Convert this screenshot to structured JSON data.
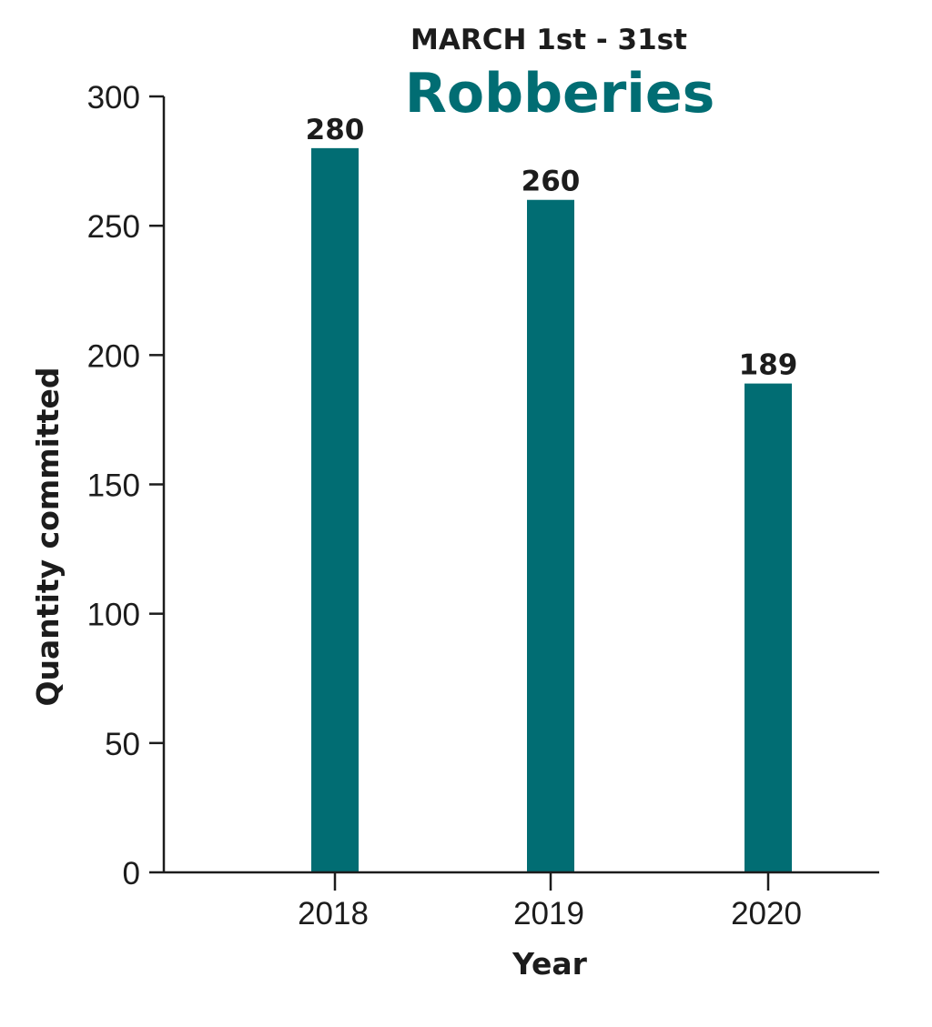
{
  "chart_data": {
    "type": "bar",
    "subtitle": "MARCH 1st - 31st",
    "title": "Robberies",
    "xlabel": "Year",
    "ylabel": "Quantity committed",
    "categories": [
      "2018",
      "2019",
      "2020"
    ],
    "values": [
      280,
      260,
      189
    ],
    "data_labels": [
      "280",
      "260",
      "189"
    ],
    "ylim": [
      0,
      300
    ],
    "yticks": [
      0,
      50,
      100,
      150,
      200,
      250,
      300
    ],
    "ytick_labels": [
      "0",
      "50",
      "100",
      "150",
      "200",
      "250",
      "300"
    ],
    "grid": false,
    "legend": "none",
    "bar_color": "#016d73",
    "text_color": "#1c1c1c"
  }
}
